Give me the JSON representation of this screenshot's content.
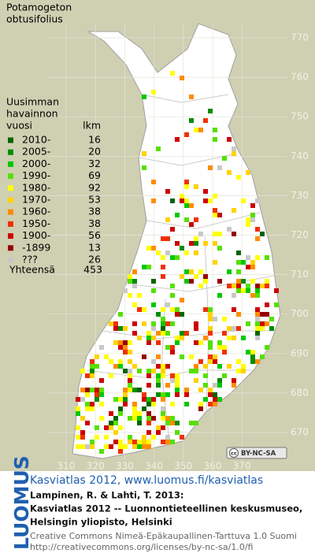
{
  "title_lines": [
    "Potamogeton",
    "obtusifolius"
  ],
  "legend": {
    "header": [
      "Uusimman",
      "havainnon",
      "vuosi"
    ],
    "count_header": "lkm",
    "items": [
      {
        "label": "2010-",
        "count": 16,
        "color": "#006400"
      },
      {
        "label": "2005-",
        "count": 20,
        "color": "#008c00"
      },
      {
        "label": "2000-",
        "count": 32,
        "color": "#00c800"
      },
      {
        "label": "1990-",
        "count": 69,
        "color": "#55e000"
      },
      {
        "label": "1980-",
        "count": 92,
        "color": "#ffff00"
      },
      {
        "label": "1970-",
        "count": 53,
        "color": "#ffd200"
      },
      {
        "label": "1960-",
        "count": 38,
        "color": "#ff8c00"
      },
      {
        "label": "1950-",
        "count": 38,
        "color": "#f03000"
      },
      {
        "label": "1900-",
        "count": 56,
        "color": "#cc0000"
      },
      {
        "label": "-1899",
        "count": 13,
        "color": "#960000"
      },
      {
        "label": "???",
        "count": 26,
        "color": "#c8c8c8"
      }
    ],
    "total_label": "Yhteensä",
    "total": 453
  },
  "y_axis": [
    770,
    760,
    750,
    740,
    730,
    720,
    710,
    700,
    690,
    680,
    670
  ],
  "x_axis": [
    310,
    320,
    330,
    340,
    350,
    360,
    370
  ],
  "license_badge": {
    "cc": "cc",
    "text": "BY-NC-SA"
  },
  "logo": "LUOMUS",
  "footer": {
    "link": "Kasviatlas 2012, www.luomus.fi/kasviatlas",
    "citation": [
      "Lampinen, R. & Lahti, T. 2013:",
      "Kasviatlas 2012 -- Luonnontieteellinen keskusmuseo,",
      "Helsingin yliopisto, Helsinki"
    ],
    "license": [
      "Creative Commons Nimeä-Epäkaupallinen-Tarttuva 1.0 Suomi",
      "http://creativecommons.org/licenses/by-nc-sa/1.0/fi"
    ]
  }
}
